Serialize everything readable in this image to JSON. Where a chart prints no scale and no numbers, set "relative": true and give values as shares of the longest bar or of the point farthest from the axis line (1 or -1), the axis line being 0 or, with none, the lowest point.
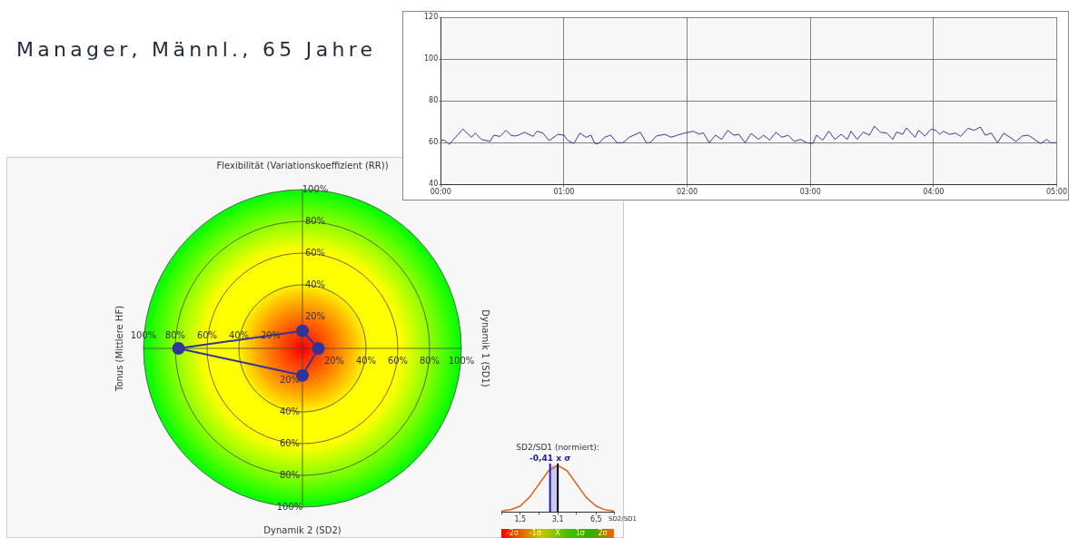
{
  "chart_data": [
    {
      "type": "line",
      "xlim": [
        0,
        5
      ],
      "xticks": [
        {
          "value": 0,
          "label": "00:00"
        },
        {
          "value": 1,
          "label": "01:00"
        },
        {
          "value": 2,
          "label": "02:00"
        },
        {
          "value": 3,
          "label": "03:00"
        },
        {
          "value": 4,
          "label": "04:00"
        },
        {
          "value": 5,
          "label": "05:00"
        }
      ],
      "ylim": [
        40,
        120
      ],
      "yticks": [
        40,
        60,
        80,
        100,
        120
      ],
      "grid": true,
      "marker": "none",
      "x": [
        0,
        0.03,
        0.07,
        0.12,
        0.18,
        0.25,
        0.28,
        0.33,
        0.4,
        0.43,
        0.48,
        0.53,
        0.57,
        0.6,
        0.63,
        0.68,
        0.75,
        0.78,
        0.83,
        0.88,
        0.95,
        1.0,
        1.03,
        1.08,
        1.13,
        1.18,
        1.22,
        1.25,
        1.28,
        1.33,
        1.38,
        1.43,
        1.48,
        1.53,
        1.62,
        1.67,
        1.7,
        1.75,
        1.82,
        1.87,
        1.92,
        1.98,
        2.05,
        2.1,
        2.13,
        2.18,
        2.23,
        2.28,
        2.33,
        2.38,
        2.42,
        2.47,
        2.52,
        2.58,
        2.62,
        2.67,
        2.72,
        2.77,
        2.82,
        2.87,
        2.92,
        2.97,
        3.02,
        3.05,
        3.1,
        3.15,
        3.2,
        3.25,
        3.3,
        3.33,
        3.38,
        3.43,
        3.48,
        3.52,
        3.57,
        3.62,
        3.67,
        3.7,
        3.75,
        3.78,
        3.85,
        3.88,
        3.93,
        3.98,
        4.02,
        4.05,
        4.08,
        4.13,
        4.18,
        4.22,
        4.28,
        4.33,
        4.38,
        4.42,
        4.47,
        4.52,
        4.57,
        4.62,
        4.67,
        4.72,
        4.77,
        4.82,
        4.87,
        4.92,
        4.95,
        5
      ],
      "series": [
        {
          "color": "#3a3a8c",
          "values": [
            61.2,
            61.2,
            59.2,
            62.6,
            66.5,
            62.6,
            64.6,
            61.6,
            60.6,
            63.6,
            63,
            65.9,
            63.6,
            63.2,
            63.6,
            65,
            63,
            65.5,
            64.6,
            61,
            64,
            63.6,
            61.2,
            59.6,
            64.6,
            62.6,
            63.6,
            59.6,
            59.6,
            62.6,
            63.6,
            60,
            60,
            62.6,
            65,
            60,
            60,
            63.2,
            64,
            62.6,
            63.6,
            64.6,
            65.5,
            64,
            64.8,
            60,
            63.6,
            61.6,
            65.9,
            63.6,
            64,
            60,
            64.4,
            61.6,
            63.6,
            61.2,
            65,
            62.6,
            63.6,
            60.6,
            61.6,
            60,
            59.6,
            63.6,
            61.2,
            65.5,
            61.6,
            64,
            61.6,
            65.5,
            61.6,
            65.1,
            63.6,
            67.9,
            65,
            64.6,
            61.6,
            65.1,
            64,
            67.1,
            62.6,
            65.9,
            63.2,
            66.5,
            65.9,
            64,
            65.5,
            64,
            64.6,
            63,
            66.9,
            65.9,
            67.5,
            63.6,
            64.6,
            60,
            64.6,
            62.6,
            60.6,
            63.2,
            63.6,
            61.6,
            59.6,
            61.6,
            60,
            60
          ]
        }
      ]
    },
    {
      "type": "radar",
      "title": "Manager, Männl., 65 Jahre",
      "categories": [
        "Flexibilität (Variationskoeffizient (RR))",
        "Dynamik 1 (SD1)",
        "Dynamik 2 (SD2)",
        "Tonus (Mittlere HF)"
      ],
      "ylim": [
        0,
        100
      ],
      "yticks": [
        {
          "value": 20,
          "label": "20%"
        },
        {
          "value": 40,
          "label": "40%"
        },
        {
          "value": 60,
          "label": "60%"
        },
        {
          "value": 80,
          "label": "80%"
        },
        {
          "value": 100,
          "label": "100%"
        }
      ],
      "grid": true,
      "marker": "circle",
      "series": [
        {
          "color": "#333399",
          "values": [
            11,
            10,
            17,
            78
          ]
        }
      ]
    },
    {
      "type": "line",
      "title": "SD2/SD1 (normiert):",
      "relative": true,
      "xlabel": "SD2/SD1",
      "log": "x",
      "xlim": [
        1.04,
        9.2
      ],
      "xticks": [
        {
          "value": 1.04,
          "label": null
        },
        {
          "value": 1.5,
          "label": "1,5"
        },
        {
          "value": 2.16,
          "label": null
        },
        {
          "value": 3.1,
          "label": "3,1"
        },
        {
          "value": 4.46,
          "label": null
        },
        {
          "value": 6.5,
          "label": "6,5"
        },
        {
          "value": 9.2,
          "label": null
        }
      ],
      "marker": "none",
      "x": [
        1.04,
        1.25,
        1.5,
        1.8,
        2.16,
        2.59,
        3.1,
        3.72,
        4.46,
        5.34,
        6.5,
        7.7,
        9.2
      ],
      "series": [
        {
          "color": "#e06020",
          "values": [
            0.02,
            0.05,
            0.13,
            0.32,
            0.6,
            0.88,
            1,
            0.88,
            0.6,
            0.32,
            0.13,
            0.05,
            0.02
          ]
        }
      ],
      "bands": [
        {
          "axis": "x",
          "from": 2.67,
          "to": 3.1,
          "color": "#c8c8f0"
        }
      ],
      "ref_lines": [
        {
          "axis": "x",
          "value": 2.67,
          "label": "-0,41 x σ",
          "color": "#2020a0"
        },
        {
          "axis": "x",
          "value": 3.1,
          "label": null,
          "color": "#000000"
        }
      ],
      "annotations": [
        "-2σ",
        "-1σ",
        "X̄",
        "1σ",
        "2σ"
      ]
    }
  ]
}
